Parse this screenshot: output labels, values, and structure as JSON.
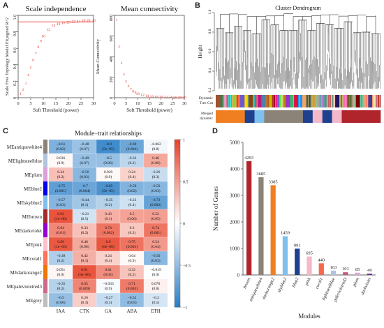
{
  "panel_labels": {
    "a": "A",
    "b": "B",
    "c": "C",
    "d": "D"
  },
  "chart_data": [
    {
      "type": "scatter",
      "title": "Scale independence",
      "xlabel": "Soft Threshold (power)",
      "ylabel": "Scale Free Topology Model Fit,signed R^2",
      "xlim": [
        0,
        30
      ],
      "ylim": [
        0,
        1
      ],
      "xticks": [
        0,
        5,
        10,
        15,
        20,
        25,
        30
      ],
      "yticks": [
        0,
        0.2,
        0.4,
        0.6,
        0.8,
        1.0
      ],
      "ytick_labels": [
        "0",
        "0.2",
        "0.4",
        "0.6",
        "0.8",
        "1.0"
      ],
      "hline": 0.92,
      "x": [
        1,
        2,
        3,
        4,
        5,
        6,
        7,
        8,
        9,
        10,
        12,
        14,
        16,
        18,
        20,
        22,
        24,
        26,
        28,
        30
      ],
      "y": [
        0.05,
        0.1,
        0.18,
        0.28,
        0.37,
        0.46,
        0.54,
        0.62,
        0.69,
        0.75,
        0.83,
        0.88,
        0.9,
        0.91,
        0.92,
        0.93,
        0.93,
        0.94,
        0.94,
        0.94
      ],
      "point_labels": [
        "1",
        "2",
        "3",
        "4",
        "5",
        "6",
        "7",
        "8",
        "9",
        "10",
        "12",
        "14",
        "16",
        "18",
        "20",
        "22",
        "24",
        "26",
        "28",
        "30"
      ],
      "colors": {
        "points": "#e8382d",
        "hline": "#e8382d"
      }
    },
    {
      "type": "scatter",
      "title": "Mean connectivity",
      "xlabel": "Soft Threshold (power)",
      "ylabel": "Mean Connectivity",
      "xlim": [
        0,
        30
      ],
      "ylim": [
        0,
        800
      ],
      "xticks": [
        0,
        5,
        10,
        15,
        20,
        25,
        30
      ],
      "yticks": [
        0,
        200,
        400,
        600,
        800
      ],
      "x": [
        1,
        2,
        3,
        4,
        5,
        6,
        7,
        8,
        9,
        10,
        12,
        14,
        16,
        18,
        20,
        22,
        24,
        26,
        28,
        30
      ],
      "y": [
        760,
        500,
        340,
        230,
        160,
        115,
        85,
        65,
        50,
        40,
        27,
        19,
        14,
        11,
        9,
        7,
        6,
        5,
        4,
        3
      ],
      "point_labels": [
        "1",
        "2",
        "3",
        "4",
        "5",
        "6",
        "7",
        "8",
        "9",
        "10",
        "12",
        "14",
        "16",
        "18",
        "20",
        "22",
        "24",
        "26",
        "28",
        "30"
      ],
      "colors": {
        "points": "#e8382d"
      }
    },
    {
      "type": "heatmap",
      "title": "Module−trait relationships",
      "rows": [
        "MEantiquewhite4",
        "MElightsteelblue",
        "MEplum",
        "MEblue2",
        "MEskyblue2",
        "MEbrown",
        "MEdarkviolet",
        "MEpink",
        "MEcoral1",
        "MEdarkorange2",
        "MEpalevioletred3",
        "MEgrey"
      ],
      "row_colors": [
        "#8b8378",
        "#b0c4de",
        "#dda0dd",
        "#0000ee",
        "#7ec0ee",
        "#a52a2a",
        "#9400d3",
        "#ffc0cb",
        "#ff7256",
        "#ee7600",
        "#cd6889",
        "#bebebe"
      ],
      "columns": [
        "IAA",
        "CTK",
        "GA",
        "ABA",
        "ETH"
      ],
      "values": [
        [
          -0.61,
          -0.48,
          -0.9,
          -0.69,
          -0.062
        ],
        [
          0.036,
          -0.49,
          -0.5,
          -0.32,
          0.46
        ],
        [
          0.34,
          -0.56,
          0.039,
          0.24,
          -0.26
        ],
        [
          -0.75,
          -0.7,
          -0.85,
          -0.59,
          -0.56
        ],
        [
          -0.57,
          -0.44,
          -0.35,
          -0.23,
          -0.73
        ],
        [
          0.92,
          -0.21,
          0.43,
          0.5,
          0.52
        ],
        [
          0.64,
          0.33,
          0.74,
          0.3,
          0.74
        ],
        [
          0.89,
          0.46,
          0.9,
          0.75,
          0.54
        ],
        [
          -0.38,
          0.42,
          0.24,
          0.04,
          -0.56
        ],
        [
          0.051,
          0.91,
          0.61,
          0.32,
          -0.019
        ],
        [
          -0.35,
          0.65,
          -0.033,
          0.71,
          0.076
        ],
        [
          -0.5,
          0.26,
          -0.27,
          -0.52,
          -0.2
        ]
      ],
      "pvalues": [
        [
          "(0.02)",
          "(0.07)",
          "(5e−05)",
          "(0.004)",
          "(0.8)"
        ],
        [
          "(0.9)",
          "(0.07)",
          "(0.06)",
          "(0.2)",
          "(0.08)"
        ],
        [
          "(0.2)",
          "(0.03)",
          "(0.9)",
          "(0.4)",
          "(0.3)"
        ],
        [
          "(0.001)",
          "(0.004)",
          "(5e−05)",
          "(0.02)",
          "(0.03)"
        ],
        [
          "(0.03)",
          "(0.1)",
          "(0.2)",
          "(0.4)",
          "(0.002)"
        ],
        [
          "(1e−06)",
          "(0.5)",
          "(0.1)",
          "(0.06)",
          "(0.05)"
        ],
        [
          "(0.01)",
          "(0.2)",
          "(0.002)",
          "(0.3)",
          "(0.001)"
        ],
        [
          "(1e−05)",
          "(0.08)",
          "(6e−06)",
          "(0.003)",
          "(0.04)"
        ],
        [
          "(0.2)",
          "(0.1)",
          "(0.4)",
          "(0.9)",
          "(0.03)"
        ],
        [
          "(0.9)",
          "(3e−06)",
          "(0.02)",
          "(0.2)",
          "(0.9)"
        ],
        [
          "(0.2)",
          "(0.009)",
          "(0.9)",
          "(0.003)",
          "(0.8)"
        ],
        [
          "(0.06)",
          "(0.3)",
          "(0.3)",
          "(0.05)",
          "(0.5)"
        ]
      ],
      "colorbar_ticks": [
        1,
        0.5,
        0,
        -0.5,
        -1
      ],
      "colorbar_labels": [
        "1",
        "0.5",
        "0",
        "−0.5",
        "−1"
      ],
      "colors": {
        "low": "#2b7fc7",
        "mid": "#ffffff",
        "high": "#e8442b"
      }
    },
    {
      "type": "bar",
      "xlabel": "Modules",
      "ylabel": "Number of Genes",
      "ylim": [
        0,
        5000
      ],
      "yticks": [
        0,
        1000,
        2000,
        3000,
        4000,
        5000
      ],
      "categories": [
        "brown",
        "antiquewhite4",
        "darkorange2",
        "skyblue2",
        "blue2",
        "pink",
        "coral1",
        "lightsteelblue",
        "palevioletred3",
        "plum",
        "darkviolet"
      ],
      "values": [
        4293,
        3685,
        3385,
        1459,
        991,
        695,
        440,
        163,
        101,
        85,
        49
      ],
      "bar_colors": [
        "#b0242c",
        "#8b8378",
        "#f07f22",
        "#7ec0ee",
        "#1f3f8f",
        "#f5b8c8",
        "#f4694f",
        "#b0c4de",
        "#c05880",
        "#d8a8d8",
        "#6a2a8a"
      ]
    }
  ],
  "dendrogram": {
    "title": "Cluster Dendrogram",
    "ylabel": "Height",
    "ylim": [
      0.2,
      1.0
    ],
    "yticks": [
      0.2,
      0.4,
      0.6,
      0.8,
      1.0
    ],
    "ytick_labels": [
      "0.2",
      "0.4",
      "0.6",
      "0.8",
      "1.0"
    ],
    "row_labels": [
      "Dynamic Tree Cut",
      "Merged dynamic"
    ],
    "merged_band": [
      "#f07f22",
      "#f07f22",
      "#f07f22",
      "#1f3f8f",
      "#7ec0ee",
      "#8b8378",
      "#8b8378",
      "#8b8378",
      "#8b8378",
      "#1f3f8f",
      "#f5b8c8",
      "#1f3f8f",
      "#f5b8c8",
      "#b0242c",
      "#b0242c",
      "#b0242c",
      "#b0242c"
    ],
    "dynamic_band": [
      "#a0522d",
      "#2e8b57",
      "#e0a0c0",
      "#40e0d0",
      "#9acd32",
      "#ff6347",
      "#6a5acd",
      "#ffd700",
      "#8b4513",
      "#20b2aa",
      "#c71585",
      "#4682b4",
      "#d2691e",
      "#7cfc00",
      "#ff1493",
      "#00ced1",
      "#b8860b",
      "#9932cc",
      "#3cb371",
      "#dc143c",
      "#1e90ff",
      "#f4a460",
      "#2f4f4f",
      "#ff8c00",
      "#8fbc8f",
      "#da70d6",
      "#5f9ea0",
      "#cd5c5c",
      "#ffdead",
      "#191970",
      "#bdb76b",
      "#ff69b4",
      "#556b2f",
      "#87ceeb",
      "#800000",
      "#66cdaa",
      "#ffa07a",
      "#483d8b",
      "#eee8aa",
      "#b22222"
    ]
  }
}
